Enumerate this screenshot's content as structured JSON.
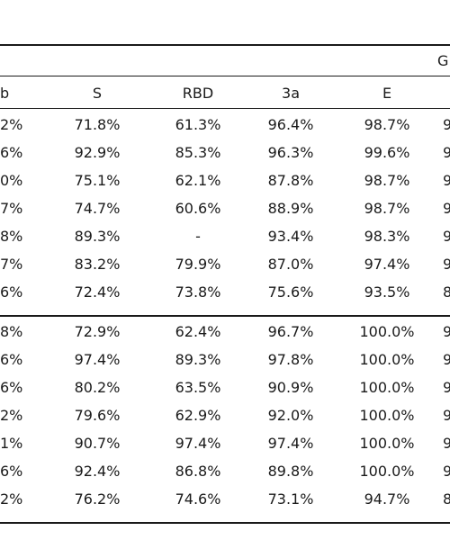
{
  "table": {
    "group_label": "G",
    "headers": [
      "b",
      "S",
      "RBD",
      "3a",
      "E",
      ""
    ],
    "rows": [
      [
        "2%",
        "71.8%",
        "61.3%",
        "96.4%",
        "98.7%",
        "9"
      ],
      [
        "6%",
        "92.9%",
        "85.3%",
        "96.3%",
        "99.6%",
        "9"
      ],
      [
        "0%",
        "75.1%",
        "62.1%",
        "87.8%",
        "98.7%",
        "9"
      ],
      [
        "7%",
        "74.7%",
        "60.6%",
        "88.9%",
        "98.7%",
        "9"
      ],
      [
        "8%",
        "89.3%",
        "-",
        "93.4%",
        "98.3%",
        "9"
      ],
      [
        "7%",
        "83.2%",
        "79.9%",
        "87.0%",
        "97.4%",
        "9"
      ],
      [
        "6%",
        "72.4%",
        "73.8%",
        "75.6%",
        "93.5%",
        "8"
      ],
      [
        "8%",
        "72.9%",
        "62.4%",
        "96.7%",
        "100.0%",
        "9"
      ],
      [
        "6%",
        "97.4%",
        "89.3%",
        "97.8%",
        "100.0%",
        "9"
      ],
      [
        "6%",
        "80.2%",
        "63.5%",
        "90.9%",
        "100.0%",
        "9"
      ],
      [
        "2%",
        "79.6%",
        "62.9%",
        "92.0%",
        "100.0%",
        "9"
      ],
      [
        "1%",
        "90.7%",
        "97.4%",
        "97.4%",
        "100.0%",
        "9"
      ],
      [
        "6%",
        "92.4%",
        "86.8%",
        "89.8%",
        "100.0%",
        "9"
      ],
      [
        "2%",
        "76.2%",
        "74.6%",
        "73.1%",
        "94.7%",
        "8"
      ]
    ]
  }
}
